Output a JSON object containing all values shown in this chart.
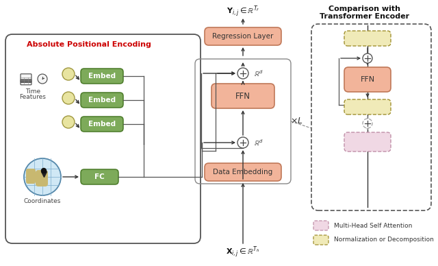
{
  "bg_color": "#ffffff",
  "ape_label": "Absolute Positional Encoding",
  "ape_label_color": "#cc0000",
  "comparison_title1": "Comparison with",
  "comparison_title2": "Transformer Encoder",
  "embed_fc_face": "#7daa5a",
  "embed_fc_edge": "#4a7a28",
  "ffn_face": "#f2b49a",
  "ffn_edge": "#c07858",
  "regression_face": "#f2b49a",
  "regression_edge": "#c07858",
  "data_embed_face": "#f2b49a",
  "data_embed_edge": "#c07858",
  "circle_face": "#e8e4a0",
  "circle_edge": "#a09840",
  "norm_face": "#f0eab8",
  "norm_edge": "#a09030",
  "attn_face": "#f0d8e4",
  "attn_edge": "#c090a8",
  "plus_face": "#ffffff",
  "plus_edge": "#555555",
  "ape_box_edge": "#555555",
  "comp_box_edge": "#555555",
  "loop_box_edge": "#888888",
  "arrow_color": "#333333",
  "line_color": "#555555",
  "text_dark": "#333333"
}
